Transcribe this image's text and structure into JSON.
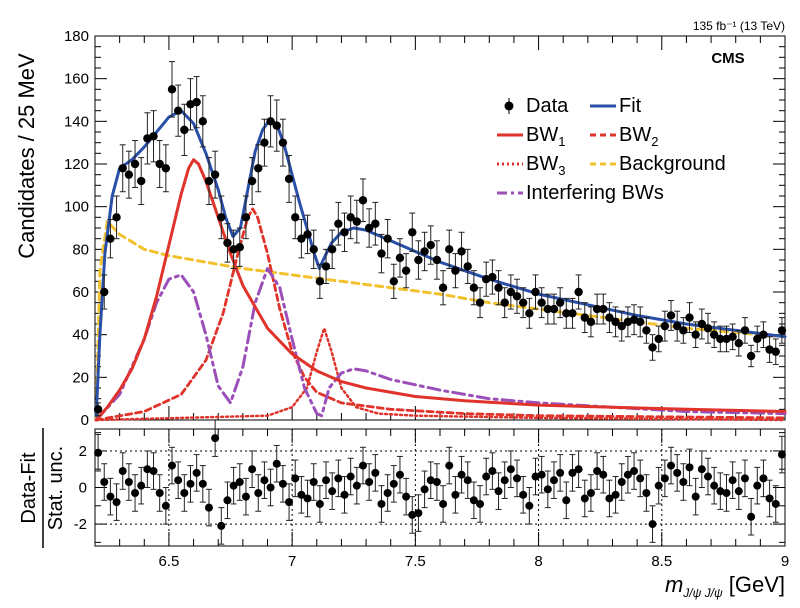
{
  "chart_data": [
    {
      "type": "scatter",
      "panel": "main",
      "ylabel": "Candidates / 25 MeV",
      "xlim": [
        6.2,
        9.0
      ],
      "ylim": [
        0,
        180
      ],
      "x_ticks": [
        "6.5",
        "7",
        "7.5",
        "8",
        "8.5",
        "9"
      ],
      "y_ticks": [
        "0",
        "20",
        "40",
        "60",
        "80",
        "100",
        "120",
        "140",
        "160",
        "180"
      ],
      "lumi_label": "135 fb⁻¹ (13 TeV)",
      "experiment_label": "CMS",
      "grid": false,
      "legend_position": "top-right",
      "legend": [
        {
          "label": "Data",
          "style": "marker",
          "color": "#000000"
        },
        {
          "label": "Fit",
          "style": "solid",
          "color": "#2a4fa8"
        },
        {
          "label": "BW",
          "sub": "1",
          "style": "solid",
          "color": "#e0332b"
        },
        {
          "label": "BW",
          "sub": "2",
          "style": "dashed",
          "color": "#e0332b"
        },
        {
          "label": "BW",
          "sub": "3",
          "style": "dotted",
          "color": "#e0332b"
        },
        {
          "label": "Background",
          "style": "dashed",
          "color": "#f2c12e"
        },
        {
          "label": "Interfering BWs",
          "style": "dashdot",
          "color": "#9b4fb8"
        }
      ],
      "data_points": {
        "x": [
          6.2125,
          6.2375,
          6.2625,
          6.2875,
          6.3125,
          6.3375,
          6.3625,
          6.3875,
          6.4125,
          6.4375,
          6.4625,
          6.4875,
          6.5125,
          6.5375,
          6.5625,
          6.5875,
          6.6125,
          6.6375,
          6.6625,
          6.6875,
          6.7125,
          6.7375,
          6.7625,
          6.7875,
          6.8125,
          6.8375,
          6.8625,
          6.8875,
          6.9125,
          6.9375,
          6.9625,
          6.9875,
          7.0125,
          7.0375,
          7.0625,
          7.0875,
          7.1125,
          7.1375,
          7.1625,
          7.1875,
          7.2125,
          7.2375,
          7.2625,
          7.2875,
          7.3125,
          7.3375,
          7.3625,
          7.3875,
          7.4125,
          7.4375,
          7.4625,
          7.4875,
          7.5125,
          7.5375,
          7.5625,
          7.5875,
          7.6125,
          7.6375,
          7.6625,
          7.6875,
          7.7125,
          7.7375,
          7.7625,
          7.7875,
          7.8125,
          7.8375,
          7.8625,
          7.8875,
          7.9125,
          7.9375,
          7.9625,
          7.9875,
          8.0125,
          8.0375,
          8.0625,
          8.0875,
          8.1125,
          8.1375,
          8.1625,
          8.1875,
          8.2125,
          8.2375,
          8.2625,
          8.2875,
          8.3125,
          8.3375,
          8.3625,
          8.3875,
          8.4125,
          8.4375,
          8.4625,
          8.4875,
          8.5125,
          8.5375,
          8.5625,
          8.5875,
          8.6125,
          8.6375,
          8.6625,
          8.6875,
          8.7125,
          8.7375,
          8.7625,
          8.7875,
          8.8125,
          8.8375,
          8.8625,
          8.8875,
          8.9125,
          8.9375,
          8.9625,
          8.9875
        ],
        "y": [
          5,
          60,
          85,
          95,
          118,
          115,
          120,
          112,
          132,
          133,
          120,
          118,
          155,
          145,
          136,
          148,
          149,
          140,
          112,
          115,
          95,
          83,
          80,
          81,
          95,
          112,
          118,
          130,
          140,
          138,
          130,
          113,
          95,
          85,
          87,
          80,
          65,
          72,
          80,
          92,
          88,
          95,
          93,
          103,
          90,
          92,
          78,
          85,
          65,
          76,
          70,
          88,
          75,
          79,
          82,
          75,
          62,
          80,
          70,
          79,
          72,
          62,
          55,
          66,
          67,
          62,
          55,
          60,
          58,
          55,
          50,
          60,
          55,
          52,
          52,
          55,
          50,
          50,
          60,
          48,
          46,
          52,
          52,
          48,
          46,
          44,
          46,
          47,
          46,
          42,
          34,
          38,
          44,
          49,
          44,
          42,
          48,
          40,
          45,
          43,
          40,
          38,
          38,
          39,
          36,
          42,
          30,
          38,
          40,
          33,
          32,
          42
        ],
        "errors": [
          3,
          8,
          9,
          10,
          11,
          11,
          11,
          11,
          12,
          12,
          11,
          11,
          13,
          12,
          12,
          12,
          12,
          12,
          11,
          11,
          10,
          9,
          9,
          9,
          10,
          11,
          11,
          11,
          12,
          12,
          11,
          11,
          10,
          9,
          9,
          9,
          8,
          8,
          9,
          10,
          9,
          10,
          10,
          10,
          9,
          10,
          9,
          9,
          8,
          9,
          8,
          9,
          9,
          9,
          9,
          9,
          8,
          9,
          8,
          9,
          8,
          8,
          7,
          8,
          8,
          8,
          7,
          8,
          8,
          7,
          7,
          8,
          7,
          7,
          7,
          7,
          7,
          7,
          8,
          7,
          7,
          7,
          7,
          7,
          7,
          7,
          7,
          7,
          7,
          6,
          6,
          6,
          7,
          7,
          7,
          6,
          7,
          6,
          7,
          7,
          6,
          6,
          6,
          6,
          6,
          6,
          5,
          6,
          6,
          6,
          6,
          6
        ]
      },
      "curves": {
        "fit": {
          "x": [
            6.205,
            6.22,
            6.24,
            6.27,
            6.3,
            6.35,
            6.4,
            6.45,
            6.5,
            6.55,
            6.6,
            6.65,
            6.7,
            6.73,
            6.76,
            6.79,
            6.82,
            6.85,
            6.88,
            6.91,
            6.94,
            6.97,
            7.0,
            7.03,
            7.06,
            7.09,
            7.11,
            7.13,
            7.16,
            7.2,
            7.25,
            7.3,
            7.4,
            7.5,
            7.6,
            7.7,
            7.8,
            8.0,
            8.2,
            8.4,
            8.6,
            8.8,
            9.0
          ],
          "y": [
            2,
            40,
            78,
            105,
            118,
            122,
            128,
            135,
            142,
            145,
            139,
            125,
            108,
            95,
            86,
            90,
            108,
            126,
            136,
            141,
            138,
            128,
            115,
            102,
            90,
            78,
            71,
            76,
            83,
            88,
            90,
            89,
            84,
            79,
            74,
            70,
            66,
            59,
            54,
            49,
            45,
            42,
            39
          ]
        },
        "bw1": {
          "x": [
            6.205,
            6.25,
            6.3,
            6.35,
            6.4,
            6.45,
            6.5,
            6.55,
            6.58,
            6.6,
            6.62,
            6.65,
            6.7,
            6.75,
            6.8,
            6.9,
            7.0,
            7.1,
            7.2,
            7.3,
            7.5,
            7.7,
            8.0,
            8.3,
            8.6,
            9.0
          ],
          "y": [
            0,
            6,
            14,
            24,
            38,
            58,
            82,
            106,
            118,
            122,
            120,
            112,
            95,
            78,
            63,
            43,
            31,
            23,
            18,
            15,
            11,
            9,
            7,
            6,
            5,
            4
          ]
        },
        "bw2": {
          "x": [
            6.205,
            6.4,
            6.55,
            6.65,
            6.72,
            6.78,
            6.82,
            6.84,
            6.86,
            6.9,
            6.95,
            7.0,
            7.05,
            7.1,
            7.2,
            7.4,
            7.7,
            8.0,
            9.0
          ],
          "y": [
            0,
            4,
            12,
            28,
            50,
            78,
            95,
            99,
            95,
            78,
            52,
            32,
            20,
            13,
            8,
            5,
            3,
            2,
            1
          ]
        },
        "bw3": {
          "x": [
            6.205,
            6.9,
            7.0,
            7.06,
            7.1,
            7.13,
            7.16,
            7.2,
            7.26,
            7.35,
            7.5,
            8.0,
            9.0
          ],
          "y": [
            0,
            2,
            6,
            15,
            32,
            43,
            32,
            15,
            6,
            3,
            2,
            1,
            0
          ]
        },
        "background": {
          "x": [
            6.205,
            6.22,
            6.25,
            6.3,
            6.4,
            6.5,
            6.6,
            6.7,
            6.8,
            7.0,
            7.2,
            7.4,
            7.6,
            7.8,
            8.0,
            8.2,
            8.4,
            8.6,
            8.8,
            9.0
          ],
          "y": [
            0,
            70,
            93,
            87,
            80,
            77,
            75,
            73,
            71,
            68,
            65,
            62,
            59,
            55,
            52,
            49,
            46,
            43,
            41,
            39
          ]
        },
        "interfering": {
          "x": [
            6.205,
            6.3,
            6.4,
            6.45,
            6.5,
            6.55,
            6.6,
            6.65,
            6.7,
            6.75,
            6.8,
            6.85,
            6.9,
            6.95,
            7.0,
            7.05,
            7.1,
            7.12,
            7.15,
            7.2,
            7.25,
            7.3,
            7.4,
            7.6,
            7.8,
            8.0,
            8.3,
            8.6,
            9.0
          ],
          "y": [
            0,
            12,
            38,
            55,
            66,
            68,
            60,
            40,
            16,
            8,
            25,
            55,
            71,
            62,
            38,
            15,
            3,
            2,
            15,
            22,
            24,
            23,
            19,
            14,
            10,
            8,
            6,
            4,
            3
          ]
        }
      }
    },
    {
      "type": "scatter",
      "panel": "ratio",
      "xlabel": "m",
      "xlabel_sub": "J/ψ J/ψ",
      "xlabel_unit": "[GeV]",
      "ylabel_top": "Data-Fit",
      "ylabel_bottom": "Stat. unc.",
      "xlim": [
        6.2,
        9.0
      ],
      "ylim": [
        -3.2,
        3.2
      ],
      "x_ticks": [
        "6.5",
        "7",
        "7.5",
        "8",
        "8.5",
        "9"
      ],
      "y_ticks": [
        "-2",
        "0",
        "2"
      ],
      "grid": true,
      "pull_values": [
        1.9,
        0.3,
        -0.5,
        -0.8,
        0.9,
        0.3,
        -0.3,
        0.1,
        1.0,
        0.9,
        -0.3,
        -1.0,
        1.2,
        0.4,
        -0.3,
        0.2,
        0.8,
        0.2,
        -1.1,
        2.7,
        -2.1,
        -0.7,
        0.1,
        0.3,
        -0.5,
        1.0,
        -0.3,
        0.4,
        0.0,
        1.3,
        0.2,
        -0.8,
        0.5,
        -0.4,
        -0.6,
        0.3,
        -0.9,
        0.4,
        -0.2,
        0.5,
        -0.4,
        0.6,
        0.1,
        1.2,
        0.3,
        0.8,
        -0.9,
        -0.3,
        0.2,
        0.7,
        -0.5,
        -1.5,
        -1.4,
        -0.1,
        0.4,
        0.3,
        -0.9,
        1.2,
        -0.4,
        0.7,
        0.4,
        -0.7,
        -0.9,
        0.6,
        0.9,
        -0.2,
        0.4,
        1.0,
        0.5,
        -0.4,
        -1.0,
        0.6,
        0.7,
        -0.1,
        0.4,
        0.8,
        -0.7,
        0.8,
        1.0,
        -0.6,
        -0.3,
        0.9,
        0.7,
        -0.6,
        -0.4,
        0.3,
        0.7,
        0.9,
        0.5,
        -0.3,
        -2.0,
        0.1,
        0.5,
        1.2,
        0.8,
        0.3,
        1.1,
        -0.5,
        1.0,
        0.6,
        0.1,
        -0.2,
        -0.3,
        0.4,
        -0.2,
        0.5,
        -1.6,
        0.1,
        0.5,
        -0.6,
        -0.9,
        1.8
      ],
      "reference_lines": [
        2,
        -2
      ]
    }
  ]
}
